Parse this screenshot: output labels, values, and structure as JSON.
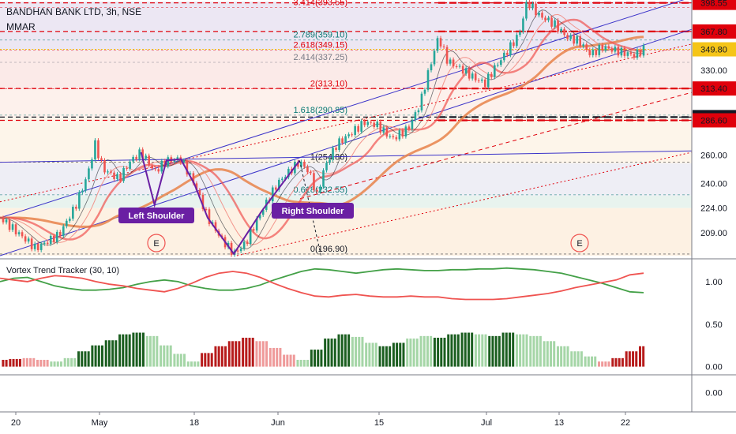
{
  "header": {
    "title": "BANDHAN BANK LTD, 3h, NSE",
    "indicator": "MMAR"
  },
  "colors": {
    "up": "#26a69a",
    "down": "#ef5350",
    "resistance": "#e0000b",
    "support_black": "#131722",
    "ma_orange": "#e8834a",
    "ma_red": "#ef5350",
    "ma_pink": "#f28b82",
    "ma_dark": "#131722",
    "channel": "#3b33c9",
    "pattern": "#6a1fa3",
    "vortex_plus": "#43a047",
    "vortex_minus": "#ef5350",
    "hist_dark_green": "#1b5e20",
    "hist_light_green": "#a5d6a7",
    "hist_dark_red": "#b71c1c",
    "hist_light_red": "#ef9a9a"
  },
  "chart_data": [
    {
      "type": "candlestick",
      "title": "BANDHAN BANK LTD, 3h, NSE",
      "x_ticks": [
        "20",
        "May",
        "18",
        "Jun",
        "15",
        "Jul",
        "13",
        "22"
      ],
      "y_ticks": [
        "398.55",
        "367.80",
        "349.80",
        "330.00",
        "313.40",
        "289.20",
        "286.60",
        "260.00",
        "240.00",
        "224.00",
        "209.00"
      ],
      "ylim": [
        196,
        400
      ],
      "y_scale": "log",
      "last_price": 349.8,
      "price_path": [
        {
          "x": 0,
          "y": 218
        },
        {
          "x": 20,
          "y": 210
        },
        {
          "x": 45,
          "y": 200
        },
        {
          "x": 75,
          "y": 208
        },
        {
          "x": 95,
          "y": 225
        },
        {
          "x": 110,
          "y": 245
        },
        {
          "x": 120,
          "y": 268
        },
        {
          "x": 130,
          "y": 250
        },
        {
          "x": 150,
          "y": 243
        },
        {
          "x": 165,
          "y": 256
        },
        {
          "x": 178,
          "y": 262
        },
        {
          "x": 195,
          "y": 248
        },
        {
          "x": 210,
          "y": 256
        },
        {
          "x": 228,
          "y": 257
        },
        {
          "x": 245,
          "y": 240
        },
        {
          "x": 262,
          "y": 218
        },
        {
          "x": 280,
          "y": 205
        },
        {
          "x": 295,
          "y": 197
        },
        {
          "x": 310,
          "y": 203
        },
        {
          "x": 330,
          "y": 222
        },
        {
          "x": 350,
          "y": 240
        },
        {
          "x": 368,
          "y": 250
        },
        {
          "x": 378,
          "y": 255
        },
        {
          "x": 390,
          "y": 248
        },
        {
          "x": 400,
          "y": 232
        },
        {
          "x": 410,
          "y": 252
        },
        {
          "x": 425,
          "y": 268
        },
        {
          "x": 440,
          "y": 275
        },
        {
          "x": 460,
          "y": 285
        },
        {
          "x": 475,
          "y": 283
        },
        {
          "x": 495,
          "y": 272
        },
        {
          "x": 515,
          "y": 280
        },
        {
          "x": 530,
          "y": 300
        },
        {
          "x": 545,
          "y": 340
        },
        {
          "x": 553,
          "y": 362
        },
        {
          "x": 565,
          "y": 338
        },
        {
          "x": 580,
          "y": 332
        },
        {
          "x": 600,
          "y": 322
        },
        {
          "x": 612,
          "y": 318
        },
        {
          "x": 625,
          "y": 333
        },
        {
          "x": 640,
          "y": 348
        },
        {
          "x": 655,
          "y": 365
        },
        {
          "x": 665,
          "y": 400
        },
        {
          "x": 680,
          "y": 385
        },
        {
          "x": 700,
          "y": 375
        },
        {
          "x": 715,
          "y": 362
        },
        {
          "x": 730,
          "y": 358
        },
        {
          "x": 745,
          "y": 345
        },
        {
          "x": 760,
          "y": 352
        },
        {
          "x": 775,
          "y": 349
        },
        {
          "x": 790,
          "y": 346
        },
        {
          "x": 800,
          "y": 344
        },
        {
          "x": 812,
          "y": 350
        }
      ],
      "horizontal_levels": [
        {
          "price": 398.55,
          "label": "398.55",
          "style": "red-dash"
        },
        {
          "price": 367.8,
          "label": "367.80",
          "style": "red-dash"
        },
        {
          "price": 349.8,
          "label": "349.80",
          "style": "last"
        },
        {
          "price": 313.4,
          "label": "313.40",
          "style": "red-dash"
        },
        {
          "price": 289.2,
          "label": "289.20",
          "style": "black-dash"
        },
        {
          "price": 286.6,
          "label": "286.60",
          "style": "red-dash"
        }
      ],
      "fibonacci": [
        {
          "level": "3.414",
          "price": 393.55,
          "label": "3.414(393.55)",
          "color": "#e0000b"
        },
        {
          "level": "2.789",
          "price": 359.1,
          "label": "2.789(359.10)",
          "color": "#0b7a75"
        },
        {
          "level": "2.618",
          "price": 349.15,
          "label": "2.618(349.15)",
          "color": "#e0000b"
        },
        {
          "level": "2.414",
          "price": 337.25,
          "label": "2.414(337.25)",
          "color": "#787b86"
        },
        {
          "level": "2",
          "price": 313.1,
          "label": "2(313.10)",
          "color": "#e0000b"
        },
        {
          "level": "1.618",
          "price": 290.85,
          "label": "1.618(290.85)",
          "color": "#0b7a75"
        },
        {
          "level": "1",
          "price": 254.8,
          "label": "1(254.80)",
          "color": "#131722"
        },
        {
          "level": "0.618",
          "price": 232.55,
          "label": "0.618(232.55)",
          "color": "#0b7a75"
        },
        {
          "level": "0",
          "price": 196.9,
          "label": "0(196.90)",
          "color": "#131722"
        }
      ],
      "annotations": {
        "left_shoulder": "Left Shoulder",
        "right_shoulder": "Right Shoulder",
        "earnings_marker": "E"
      }
    },
    {
      "type": "line",
      "title": "Vortex Trend Tracker (30, 10)",
      "y_ticks": [
        "1.00",
        "0.50",
        "0.00"
      ],
      "ylim": [
        -0.05,
        1.25
      ],
      "series": [
        {
          "name": "VI+",
          "color": "#43a047",
          "values": [
            1.0,
            1.04,
            1.05,
            1.0,
            0.95,
            0.92,
            0.9,
            0.9,
            0.91,
            0.93,
            0.97,
            1.0,
            1.02,
            1.0,
            0.95,
            0.92,
            0.9,
            0.9,
            0.92,
            0.96,
            1.02,
            1.07,
            1.12,
            1.15,
            1.14,
            1.12,
            1.1,
            1.12,
            1.14,
            1.15,
            1.14,
            1.13,
            1.13,
            1.14,
            1.14,
            1.15,
            1.15,
            1.16,
            1.15,
            1.14,
            1.12,
            1.1,
            1.06,
            1.02,
            0.98,
            0.93,
            0.88,
            0.87
          ]
        },
        {
          "name": "VI-",
          "color": "#ef5350",
          "values": [
            1.04,
            1.02,
            1.0,
            1.04,
            1.07,
            1.06,
            1.04,
            1.0,
            0.97,
            0.95,
            0.92,
            0.9,
            0.88,
            0.92,
            0.98,
            1.05,
            1.1,
            1.12,
            1.1,
            1.05,
            0.98,
            0.92,
            0.87,
            0.83,
            0.82,
            0.84,
            0.85,
            0.83,
            0.82,
            0.82,
            0.83,
            0.82,
            0.82,
            0.8,
            0.79,
            0.79,
            0.79,
            0.8,
            0.82,
            0.84,
            0.86,
            0.89,
            0.93,
            0.96,
            0.99,
            1.02,
            1.08,
            1.1
          ]
        }
      ],
      "histogram": [
        0.08,
        0.09,
        0.1,
        0.08,
        0.06,
        0.1,
        0.18,
        0.25,
        0.31,
        0.38,
        0.4,
        0.36,
        0.25,
        0.15,
        0.06,
        0.16,
        0.24,
        0.3,
        0.34,
        0.3,
        0.22,
        0.14,
        0.08,
        0.2,
        0.33,
        0.38,
        0.35,
        0.28,
        0.24,
        0.28,
        0.33,
        0.36,
        0.34,
        0.38,
        0.4,
        0.38,
        0.36,
        0.4,
        0.38,
        0.36,
        0.3,
        0.24,
        0.18,
        0.12,
        0.06,
        0.1,
        0.18,
        0.24
      ],
      "histogram_colors": [
        "dr",
        "dr",
        "lr",
        "lr",
        "lg",
        "lg",
        "dg",
        "dg",
        "dg",
        "dg",
        "dg",
        "lg",
        "lg",
        "lg",
        "lg",
        "dr",
        "dr",
        "dr",
        "dr",
        "lr",
        "lr",
        "lr",
        "lg",
        "dg",
        "dg",
        "dg",
        "lg",
        "lg",
        "dg",
        "dg",
        "lg",
        "lg",
        "dg",
        "dg",
        "dg",
        "lg",
        "dg",
        "dg",
        "lg",
        "lg",
        "lg",
        "lg",
        "lg",
        "lg",
        "lr",
        "dr",
        "dr",
        "dr"
      ]
    },
    {
      "type": "line",
      "title": "",
      "y_ticks": [
        "0.00"
      ],
      "series": []
    }
  ]
}
